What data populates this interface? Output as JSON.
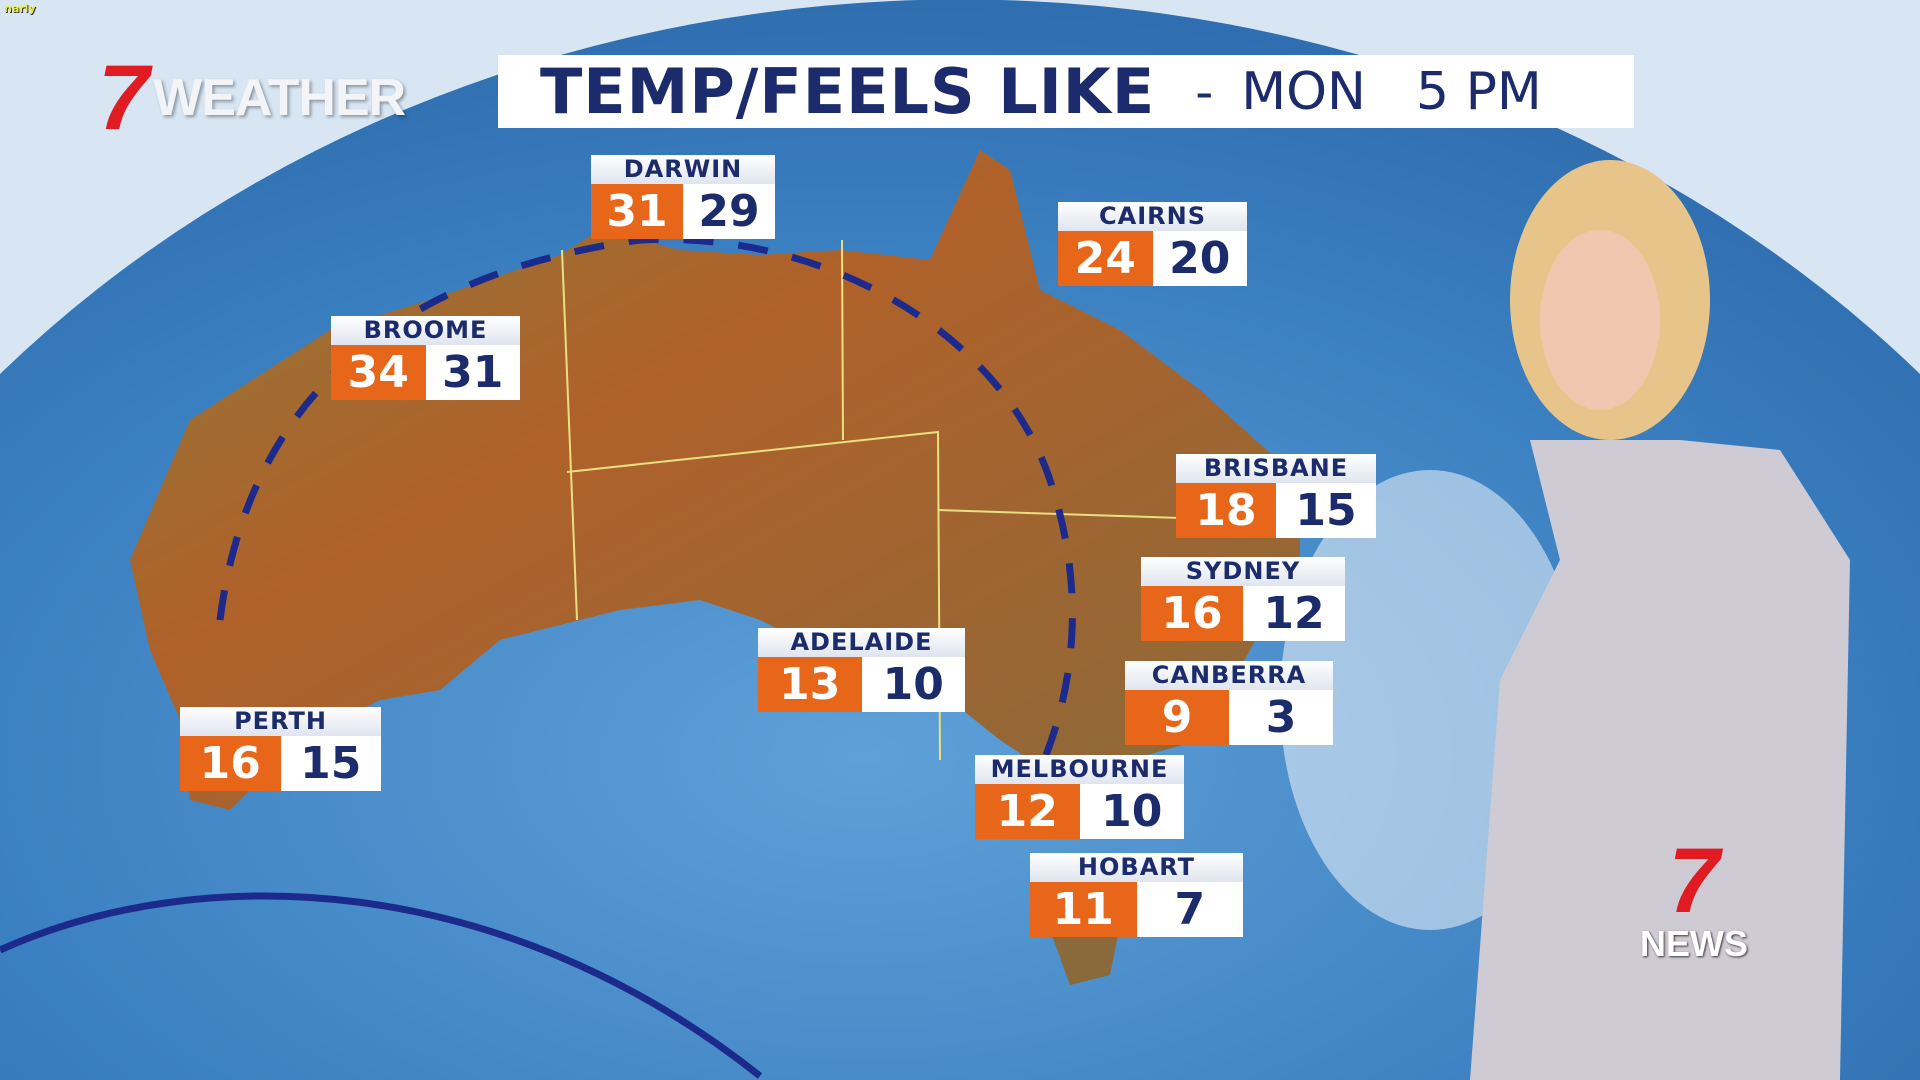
{
  "overlay_tag": "narly",
  "logo": {
    "number": "7",
    "word": "WEATHER"
  },
  "title": {
    "main": "TEMP/FEELS LIKE",
    "separator": "-",
    "day": "MON",
    "time": "5 PM"
  },
  "cities": [
    {
      "name": "DARWIN",
      "temp": "31",
      "feels_like": "29"
    },
    {
      "name": "CAIRNS",
      "temp": "24",
      "feels_like": "20"
    },
    {
      "name": "BROOME",
      "temp": "34",
      "feels_like": "31"
    },
    {
      "name": "BRISBANE",
      "temp": "18",
      "feels_like": "15"
    },
    {
      "name": "SYDNEY",
      "temp": "16",
      "feels_like": "12"
    },
    {
      "name": "ADELAIDE",
      "temp": "13",
      "feels_like": "10"
    },
    {
      "name": "CANBERRA",
      "temp": "9",
      "feels_like": "3"
    },
    {
      "name": "PERTH",
      "temp": "16",
      "feels_like": "15"
    },
    {
      "name": "MELBOURNE",
      "temp": "12",
      "feels_like": "10"
    },
    {
      "name": "HOBART",
      "temp": "11",
      "feels_like": "7"
    }
  ],
  "news_logo": {
    "number": "7",
    "word": "NEWS"
  },
  "colors": {
    "temp_bg": "#e8661a",
    "feels_bg": "#ffffff",
    "text": "#1c2b6b",
    "ocean": "#3f86c6",
    "land": "#a8622a"
  }
}
